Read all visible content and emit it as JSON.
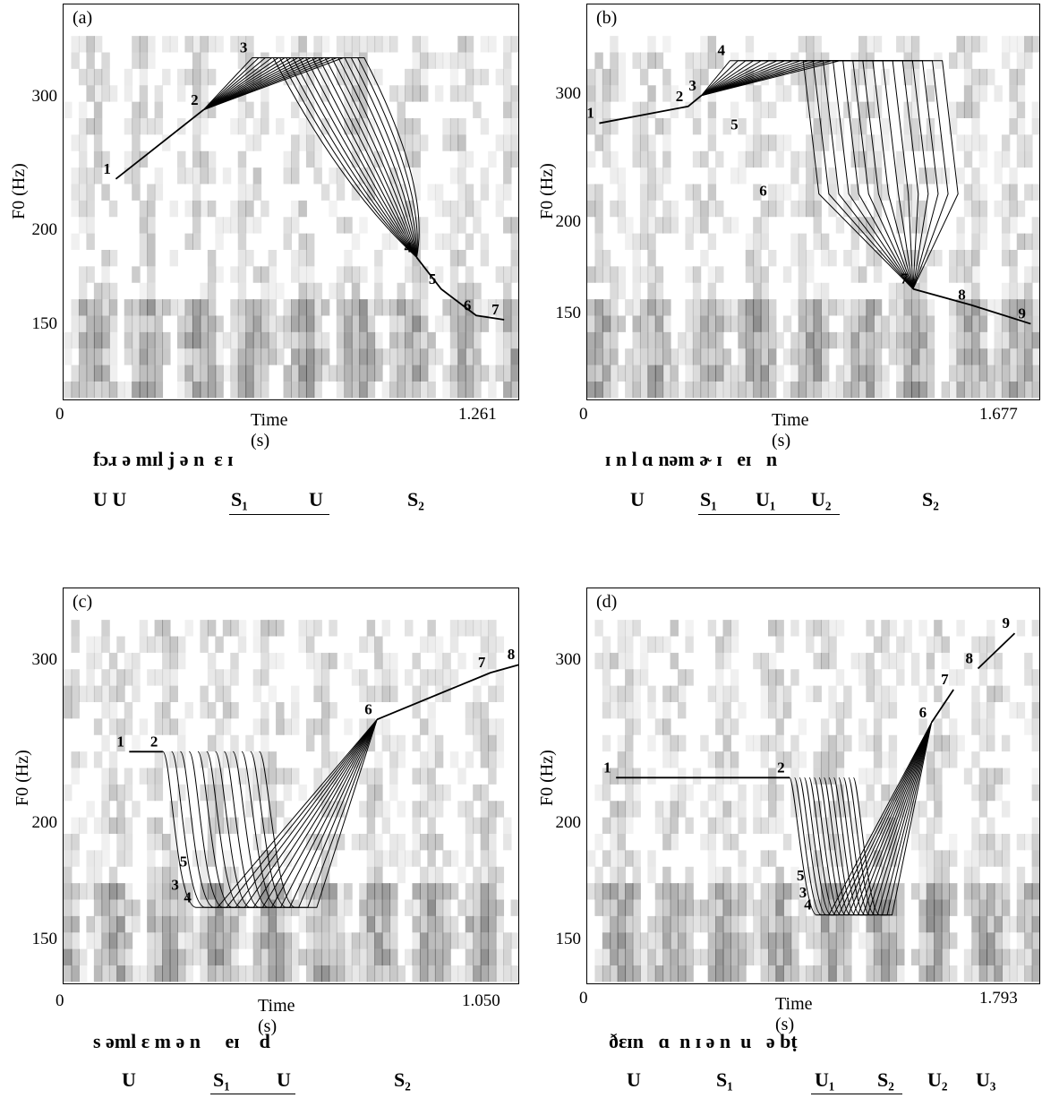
{
  "chart_data": [
    {
      "type": "line",
      "panel_label": "(a)",
      "xlabel": "Time (s)",
      "ylabel": "F0 (Hz)",
      "x_start": "0",
      "x_end": "1.261",
      "xlim": [
        0,
        1.261
      ],
      "y_ticks": [
        "300",
        "200",
        "150"
      ],
      "ylim_hz": [
        120,
        400
      ],
      "phones": "fɔɹ ə mɪl j ə n  ɛ ɪ",
      "syllable_labels": [
        "U U",
        "S₁",
        "U",
        "S₂"
      ],
      "f0_points": [
        {
          "label": "1",
          "t": 0.13,
          "f0": 235
        },
        {
          "label": "2",
          "t": 0.38,
          "f0": 290
        },
        {
          "label": "3",
          "t": 0.52,
          "f0": 340
        },
        {
          "label": "4",
          "t": 0.99,
          "f0": 185
        },
        {
          "label": "5",
          "t": 1.06,
          "f0": 168
        },
        {
          "label": "6",
          "t": 1.16,
          "f0": 155
        },
        {
          "label": "7",
          "t": 1.24,
          "f0": 153
        }
      ],
      "fan": {
        "type": "peak",
        "count": 15,
        "peak_hz": 340,
        "peak_shift": 0.26,
        "note": "peak-alignment continuum"
      }
    },
    {
      "type": "line",
      "panel_label": "(b)",
      "xlabel": "Time (s)",
      "ylabel": "F0 (Hz)",
      "x_start": "0",
      "x_end": "1.677",
      "xlim": [
        0,
        1.677
      ],
      "y_ticks": [
        "300",
        "200",
        "150"
      ],
      "ylim_hz": [
        115,
        400
      ],
      "phones": "ɪ n l ɑ nəm ɚ ɪ   eɪ   n",
      "syllable_labels": [
        "U",
        "S₁",
        "U₁",
        "U₂",
        "S₂"
      ],
      "f0_points": [
        {
          "label": "1",
          "t": 0.02,
          "f0": 275
        },
        {
          "label": "2",
          "t": 0.36,
          "f0": 290
        },
        {
          "label": "3",
          "t": 0.41,
          "f0": 300
        },
        {
          "label": "4",
          "t": 0.52,
          "f0": 335
        },
        {
          "label": "5",
          "t": 0.57,
          "f0": 265
        },
        {
          "label": "6",
          "t": 0.68,
          "f0": 215
        },
        {
          "label": "7",
          "t": 1.22,
          "f0": 163
        },
        {
          "label": "8",
          "t": 1.44,
          "f0": 155
        },
        {
          "label": "9",
          "t": 1.67,
          "f0": 146
        }
      ],
      "fan": {
        "type": "plateau",
        "count": 15
      }
    },
    {
      "type": "line",
      "panel_label": "(c)",
      "xlabel": "Time (s)",
      "ylabel": "F0 (Hz)",
      "x_start": "0",
      "x_end": "1.050",
      "xlim": [
        0,
        1.05
      ],
      "y_ticks": [
        "300",
        "200",
        "150"
      ],
      "ylim_hz": [
        135,
        360
      ],
      "phones": "s əml ɛ m ə n     eɪ    d",
      "syllable_labels": [
        "U",
        "S₁",
        "U",
        "S₂"
      ],
      "f0_points": [
        {
          "label": "1",
          "t": 0.14,
          "f0": 240
        },
        {
          "label": "2",
          "t": 0.22,
          "f0": 240
        },
        {
          "label": "3",
          "t": 0.27,
          "f0": 168
        },
        {
          "label": "4",
          "t": 0.3,
          "f0": 163
        },
        {
          "label": "5",
          "t": 0.29,
          "f0": 178
        },
        {
          "label": "6",
          "t": 0.73,
          "f0": 260
        },
        {
          "label": "7",
          "t": 1.0,
          "f0": 292
        },
        {
          "label": "8",
          "t": 1.07,
          "f0": 298
        }
      ],
      "fan": {
        "type": "valley",
        "count": 12
      }
    },
    {
      "type": "line",
      "panel_label": "(d)",
      "xlabel": "Time (s)",
      "ylabel": "F0 (Hz)",
      "x_start": "0",
      "x_end": "1.793",
      "xlim": [
        0,
        1.793
      ],
      "y_ticks": [
        "300",
        "200",
        "150"
      ],
      "ylim_hz": [
        135,
        360
      ],
      "phones": "ðɛɪn   ɑ  n ɪ ə n  u   ə bṭ",
      "syllable_labels": [
        "U",
        "S₁",
        "U₁",
        "S₂",
        "U₂",
        "U₃"
      ],
      "f0_points": [
        {
          "label": "1",
          "t": 0.09,
          "f0": 225
        },
        {
          "label": "2",
          "t": 0.8,
          "f0": 225
        },
        {
          "label": "3",
          "t": 0.89,
          "f0": 165
        },
        {
          "label": "4",
          "t": 0.91,
          "f0": 160
        },
        {
          "label": "5",
          "t": 0.88,
          "f0": 172
        },
        {
          "label": "6",
          "t": 1.38,
          "f0": 258
        },
        {
          "label": "7",
          "t": 1.47,
          "f0": 280
        },
        {
          "label": "8",
          "t": 1.57,
          "f0": 295
        },
        {
          "label": "9",
          "t": 1.72,
          "f0": 322
        }
      ],
      "fan": {
        "type": "valley",
        "count": 14
      }
    }
  ]
}
